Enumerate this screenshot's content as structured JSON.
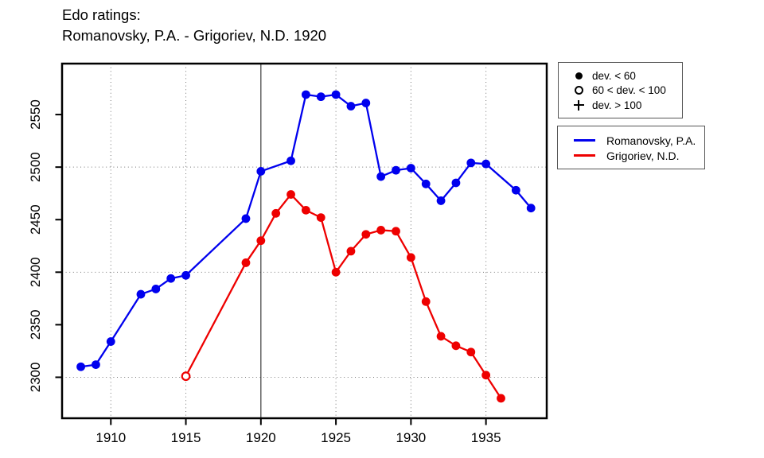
{
  "title": {
    "line1": "Edo ratings:",
    "line2": "Romanovsky, P.A. - Grigoriev, N.D. 1920"
  },
  "colors": {
    "romanovsky": "#0000ee",
    "grigoriev": "#ee0000",
    "frame": "#000000",
    "grid": "#777777",
    "reference_line": "#3a3a3a",
    "text": "#000000"
  },
  "marker_legend": {
    "items": [
      {
        "symbol": "filled-circle",
        "label": "dev. < 60"
      },
      {
        "symbol": "open-circle",
        "label": "60 < dev. < 100"
      },
      {
        "symbol": "plus",
        "label": "dev. > 100"
      }
    ]
  },
  "chart_data": {
    "type": "line",
    "title": "Edo ratings: Romanovsky, P.A. - Grigoriev, N.D. 1920",
    "xlabel": "",
    "ylabel": "",
    "xlim": [
      1906.75,
      1939.05
    ],
    "ylim": [
      2261,
      2598.5
    ],
    "x_ticks": [
      1910,
      1915,
      1920,
      1925,
      1930,
      1935
    ],
    "y_ticks": [
      2300,
      2350,
      2400,
      2450,
      2500,
      2550
    ],
    "x_gridlines_dotted": [
      1910,
      1915,
      1925,
      1930,
      1935
    ],
    "y_gridlines_dotted": [
      2300,
      2400,
      2500
    ],
    "reference_line_x": 1920,
    "grid": "dotted",
    "legend_position": "outside-right",
    "marker_meaning": "filled circle: dev. < 60; open circle: 60 < dev. < 100; plus: dev. > 100",
    "series": [
      {
        "name": "Romanovsky, P.A.",
        "color": "#0000ee",
        "open_points": [],
        "points": [
          [
            1908,
            2310
          ],
          [
            1909,
            2312
          ],
          [
            1910,
            2334
          ],
          [
            1912,
            2379
          ],
          [
            1913,
            2384
          ],
          [
            1914,
            2394
          ],
          [
            1915,
            2397
          ],
          [
            1919,
            2451
          ],
          [
            1920,
            2496
          ],
          [
            1922,
            2506
          ],
          [
            1923,
            2569
          ],
          [
            1924,
            2567
          ],
          [
            1925,
            2569
          ],
          [
            1926,
            2558
          ],
          [
            1927,
            2561
          ],
          [
            1928,
            2491
          ],
          [
            1929,
            2497
          ],
          [
            1930,
            2499
          ],
          [
            1931,
            2484
          ],
          [
            1932,
            2468
          ],
          [
            1933,
            2485
          ],
          [
            1934,
            2504
          ],
          [
            1935,
            2503
          ],
          [
            1937,
            2478
          ],
          [
            1938,
            2461
          ]
        ]
      },
      {
        "name": "Grigoriev, N.D.",
        "color": "#ee0000",
        "open_points": [
          1915
        ],
        "points": [
          [
            1915,
            2301
          ],
          [
            1919,
            2409
          ],
          [
            1920,
            2430
          ],
          [
            1921,
            2456
          ],
          [
            1922,
            2474
          ],
          [
            1923,
            2459
          ],
          [
            1924,
            2452
          ],
          [
            1925,
            2400
          ],
          [
            1926,
            2420
          ],
          [
            1927,
            2436
          ],
          [
            1928,
            2440
          ],
          [
            1929,
            2439
          ],
          [
            1930,
            2414
          ],
          [
            1931,
            2372
          ],
          [
            1932,
            2339
          ],
          [
            1933,
            2330
          ],
          [
            1934,
            2324
          ],
          [
            1935,
            2302
          ],
          [
            1936,
            2280
          ]
        ]
      }
    ]
  }
}
